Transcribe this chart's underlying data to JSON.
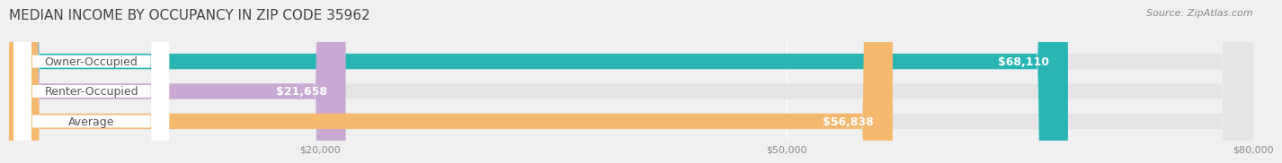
{
  "title": "MEDIAN INCOME BY OCCUPANCY IN ZIP CODE 35962",
  "source_text": "Source: ZipAtlas.com",
  "categories": [
    "Owner-Occupied",
    "Renter-Occupied",
    "Average"
  ],
  "values": [
    68110,
    21658,
    56838
  ],
  "bar_colors": [
    "#2ab5b5",
    "#c9a8d4",
    "#f5b96e"
  ],
  "value_labels": [
    "$68,110",
    "$21,658",
    "$56,838"
  ],
  "xlim": [
    0,
    80000
  ],
  "xticks": [
    20000,
    50000,
    80000
  ],
  "xtick_labels": [
    "$20,000",
    "$50,000",
    "$80,000"
  ],
  "background_color": "#f0f0f0",
  "bar_background_color": "#e4e4e4",
  "title_fontsize": 11,
  "source_fontsize": 8,
  "label_fontsize": 9,
  "value_fontsize": 9,
  "tick_fontsize": 8,
  "bar_height": 0.52
}
